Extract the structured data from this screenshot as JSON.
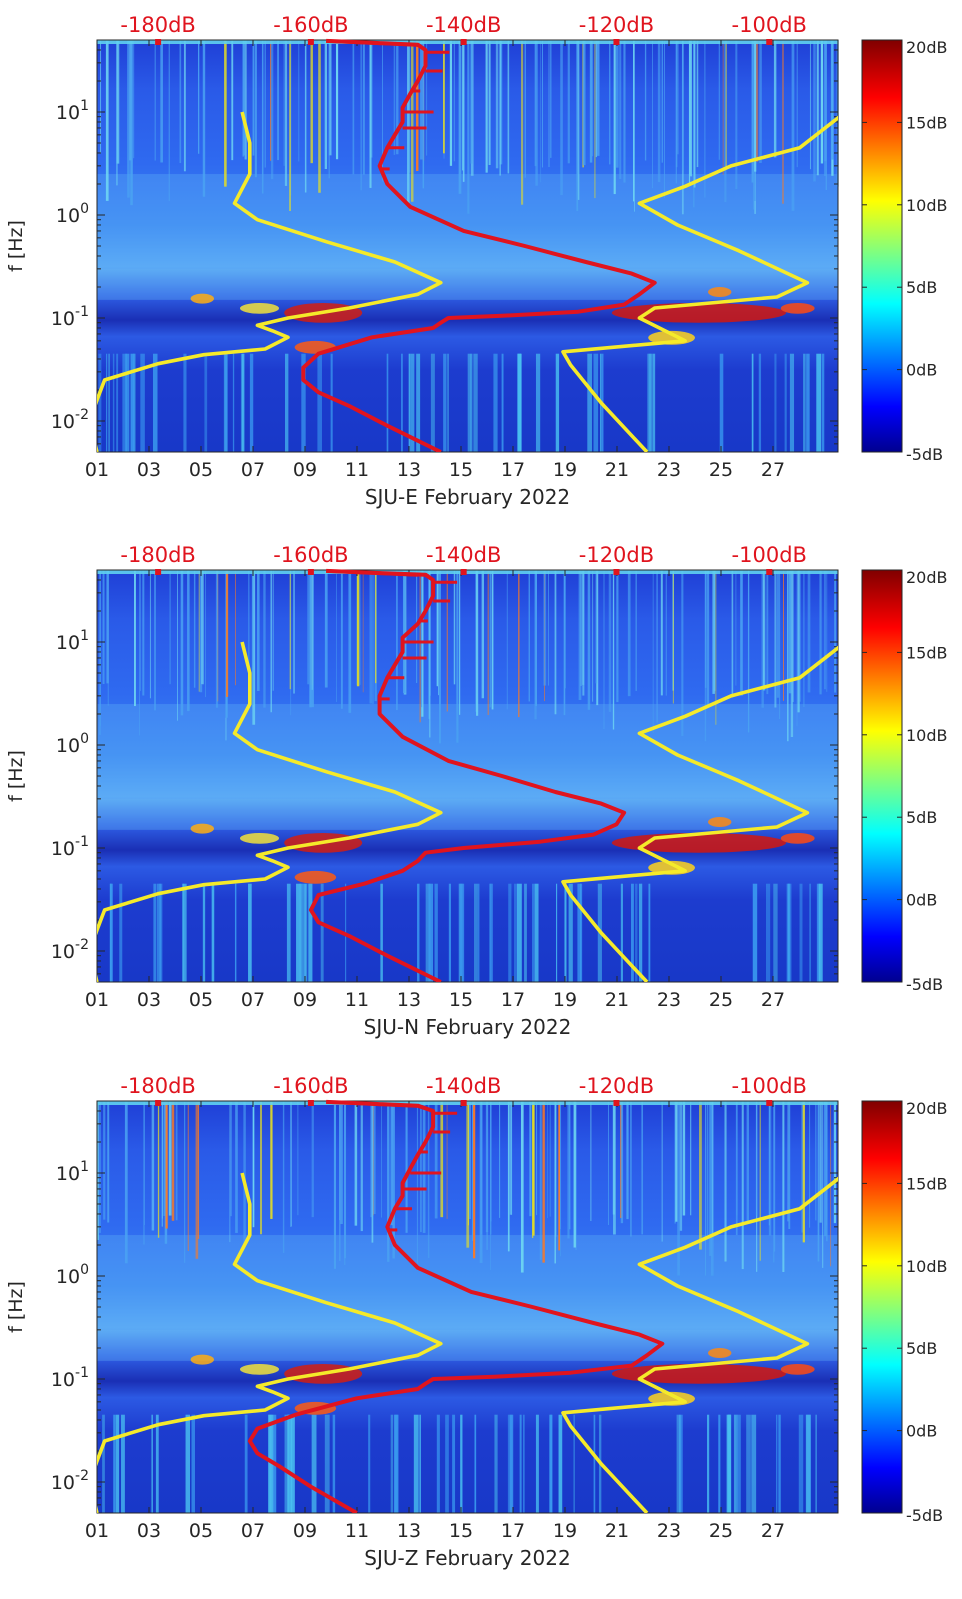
{
  "chart_data": [
    {
      "type": "heatmap",
      "xlabel": "SJU-E February 2022",
      "ylabel": "f [Hz]",
      "x_ticks": [
        "01",
        "03",
        "05",
        "07",
        "09",
        "11",
        "13",
        "15",
        "17",
        "19",
        "21",
        "23",
        "25",
        "27"
      ],
      "y_ticks": [
        "10^-2",
        "10^-1",
        "10^0",
        "10^1"
      ],
      "y_scale": "log",
      "ylim": [
        0.005,
        50
      ],
      "xlim": [
        1,
        29.5
      ],
      "top_axis_ticks": [
        "-180dB",
        "-160dB",
        "-140dB",
        "-120dB",
        "-100dB"
      ],
      "top_axis_range": [
        -188,
        -91
      ],
      "colorbar": {
        "ticks": [
          "20dB",
          "15dB",
          "10dB",
          "5dB",
          "0dB",
          "-5dB"
        ],
        "range": [
          -5,
          20
        ]
      },
      "series": [
        {
          "style": "yellow-low",
          "points": [
            [
              -188,
              0.005
            ],
            [
              -189,
              0.01
            ],
            [
              -188,
              0.016
            ],
            [
              -187,
              0.025
            ],
            [
              -180,
              0.036
            ],
            [
              -174,
              0.044
            ],
            [
              -166,
              0.05
            ],
            [
              -163,
              0.065
            ],
            [
              -165,
              0.075
            ],
            [
              -167,
              0.085
            ],
            [
              -163,
              0.1
            ],
            [
              -155,
              0.125
            ],
            [
              -146,
              0.17
            ],
            [
              -143,
              0.22
            ],
            [
              -149,
              0.35
            ],
            [
              -158,
              0.55
            ],
            [
              -167,
              0.9
            ],
            [
              -170,
              1.3
            ],
            [
              -168,
              2.5
            ],
            [
              -168,
              5
            ],
            [
              -169,
              10
            ]
          ]
        },
        {
          "style": "yellow-high",
          "points": [
            [
              -116,
              0.005
            ],
            [
              -122,
              0.015
            ],
            [
              -126,
              0.035
            ],
            [
              -127,
              0.047
            ],
            [
              -111,
              0.06
            ],
            [
              -117,
              0.1
            ],
            [
              -115,
              0.125
            ],
            [
              -99,
              0.16
            ],
            [
              -95,
              0.22
            ],
            [
              -104,
              0.45
            ],
            [
              -112,
              0.8
            ],
            [
              -117,
              1.3
            ],
            [
              -111,
              1.9
            ],
            [
              -105,
              3
            ],
            [
              -96,
              4.5
            ],
            [
              -90,
              10
            ]
          ]
        },
        {
          "style": "red-model",
          "points": [
            [
              -143,
              0.005
            ],
            [
              -150,
              0.009
            ],
            [
              -155,
              0.014
            ],
            [
              -159,
              0.019
            ],
            [
              -161,
              0.025
            ],
            [
              -161,
              0.033
            ],
            [
              -159,
              0.045
            ],
            [
              -152,
              0.065
            ],
            [
              -144,
              0.08
            ],
            [
              -143,
              0.09
            ],
            [
              -142,
              0.1
            ],
            [
              -135,
              0.105
            ],
            [
              -125,
              0.115
            ],
            [
              -119,
              0.135
            ],
            [
              -117,
              0.17
            ],
            [
              -115,
              0.22
            ],
            [
              -118,
              0.27
            ],
            [
              -124,
              0.35
            ],
            [
              -132,
              0.5
            ],
            [
              -140,
              0.7
            ],
            [
              -147,
              1.2
            ],
            [
              -150,
              2
            ],
            [
              -151,
              3
            ],
            [
              -150,
              4.5
            ],
            [
              -149,
              6
            ],
            [
              -148,
              8
            ],
            [
              -148,
              11
            ],
            [
              -147,
              15
            ],
            [
              -146,
              20
            ],
            [
              -145,
              28
            ],
            [
              -145,
              40
            ],
            [
              -146,
              45
            ],
            [
              -152,
              47
            ],
            [
              -158,
              49
            ]
          ]
        }
      ]
    },
    {
      "type": "heatmap",
      "xlabel": "SJU-N February 2022",
      "ylabel": "f [Hz]",
      "x_ticks": [
        "01",
        "03",
        "05",
        "07",
        "09",
        "11",
        "13",
        "15",
        "17",
        "19",
        "21",
        "23",
        "25",
        "27"
      ],
      "y_ticks": [
        "10^-2",
        "10^-1",
        "10^0",
        "10^1"
      ],
      "y_scale": "log",
      "ylim": [
        0.005,
        50
      ],
      "xlim": [
        1,
        29.5
      ],
      "top_axis_ticks": [
        "-180dB",
        "-160dB",
        "-140dB",
        "-120dB",
        "-100dB"
      ],
      "top_axis_range": [
        -188,
        -91
      ],
      "colorbar": {
        "ticks": [
          "20dB",
          "15dB",
          "10dB",
          "5dB",
          "0dB",
          "-5dB"
        ],
        "range": [
          -5,
          20
        ]
      },
      "series": [
        {
          "style": "yellow-low",
          "points": [
            [
              -188,
              0.005
            ],
            [
              -189,
              0.01
            ],
            [
              -188,
              0.016
            ],
            [
              -187,
              0.025
            ],
            [
              -180,
              0.036
            ],
            [
              -174,
              0.044
            ],
            [
              -166,
              0.05
            ],
            [
              -163,
              0.065
            ],
            [
              -165,
              0.075
            ],
            [
              -167,
              0.085
            ],
            [
              -163,
              0.1
            ],
            [
              -155,
              0.125
            ],
            [
              -146,
              0.17
            ],
            [
              -143,
              0.22
            ],
            [
              -149,
              0.35
            ],
            [
              -158,
              0.55
            ],
            [
              -167,
              0.9
            ],
            [
              -170,
              1.3
            ],
            [
              -168,
              2.5
            ],
            [
              -168,
              5
            ],
            [
              -169,
              10
            ]
          ]
        },
        {
          "style": "yellow-high",
          "points": [
            [
              -116,
              0.005
            ],
            [
              -122,
              0.015
            ],
            [
              -126,
              0.035
            ],
            [
              -127,
              0.047
            ],
            [
              -111,
              0.06
            ],
            [
              -117,
              0.1
            ],
            [
              -115,
              0.125
            ],
            [
              -99,
              0.16
            ],
            [
              -95,
              0.22
            ],
            [
              -104,
              0.45
            ],
            [
              -112,
              0.8
            ],
            [
              -117,
              1.3
            ],
            [
              -111,
              1.9
            ],
            [
              -105,
              3
            ],
            [
              -96,
              4.5
            ],
            [
              -90,
              10
            ]
          ]
        },
        {
          "style": "red-model",
          "points": [
            [
              -143,
              0.005
            ],
            [
              -150,
              0.009
            ],
            [
              -155,
              0.014
            ],
            [
              -159,
              0.019
            ],
            [
              -160,
              0.025
            ],
            [
              -159,
              0.035
            ],
            [
              -153,
              0.045
            ],
            [
              -148,
              0.06
            ],
            [
              -146,
              0.075
            ],
            [
              -145,
              0.09
            ],
            [
              -140,
              0.1
            ],
            [
              -130,
              0.115
            ],
            [
              -123,
              0.135
            ],
            [
              -120,
              0.17
            ],
            [
              -119,
              0.22
            ],
            [
              -122,
              0.27
            ],
            [
              -128,
              0.35
            ],
            [
              -135,
              0.5
            ],
            [
              -142,
              0.7
            ],
            [
              -148,
              1.2
            ],
            [
              -151,
              2
            ],
            [
              -151,
              3
            ],
            [
              -150,
              4.5
            ],
            [
              -149,
              6
            ],
            [
              -148,
              8
            ],
            [
              -148,
              11
            ],
            [
              -146,
              15
            ],
            [
              -145,
              20
            ],
            [
              -144,
              28
            ],
            [
              -144,
              40
            ],
            [
              -145,
              45
            ],
            [
              -152,
              47
            ],
            [
              -158,
              49
            ]
          ]
        }
      ]
    },
    {
      "type": "heatmap",
      "xlabel": "SJU-Z February 2022",
      "ylabel": "f [Hz]",
      "x_ticks": [
        "01",
        "03",
        "05",
        "07",
        "09",
        "11",
        "13",
        "15",
        "17",
        "19",
        "21",
        "23",
        "25",
        "27"
      ],
      "y_ticks": [
        "10^-2",
        "10^-1",
        "10^0",
        "10^1"
      ],
      "y_scale": "log",
      "ylim": [
        0.005,
        50
      ],
      "xlim": [
        1,
        29.5
      ],
      "top_axis_ticks": [
        "-180dB",
        "-160dB",
        "-140dB",
        "-120dB",
        "-100dB"
      ],
      "top_axis_range": [
        -188,
        -91
      ],
      "colorbar": {
        "ticks": [
          "20dB",
          "15dB",
          "10dB",
          "5dB",
          "0dB",
          "-5dB"
        ],
        "range": [
          -5,
          20
        ]
      },
      "series": [
        {
          "style": "yellow-low",
          "points": [
            [
              -188,
              0.005
            ],
            [
              -189,
              0.01
            ],
            [
              -188,
              0.016
            ],
            [
              -187,
              0.025
            ],
            [
              -180,
              0.036
            ],
            [
              -174,
              0.044
            ],
            [
              -166,
              0.05
            ],
            [
              -163,
              0.065
            ],
            [
              -165,
              0.075
            ],
            [
              -167,
              0.085
            ],
            [
              -163,
              0.1
            ],
            [
              -155,
              0.125
            ],
            [
              -146,
              0.17
            ],
            [
              -143,
              0.22
            ],
            [
              -149,
              0.35
            ],
            [
              -158,
              0.55
            ],
            [
              -167,
              0.9
            ],
            [
              -170,
              1.3
            ],
            [
              -168,
              2.5
            ],
            [
              -168,
              5
            ],
            [
              -169,
              10
            ]
          ]
        },
        {
          "style": "yellow-high",
          "points": [
            [
              -116,
              0.005
            ],
            [
              -122,
              0.015
            ],
            [
              -126,
              0.035
            ],
            [
              -127,
              0.047
            ],
            [
              -111,
              0.06
            ],
            [
              -117,
              0.1
            ],
            [
              -115,
              0.125
            ],
            [
              -99,
              0.16
            ],
            [
              -95,
              0.22
            ],
            [
              -104,
              0.45
            ],
            [
              -112,
              0.8
            ],
            [
              -117,
              1.3
            ],
            [
              -111,
              1.9
            ],
            [
              -105,
              3
            ],
            [
              -96,
              4.5
            ],
            [
              -90,
              10
            ]
          ]
        },
        {
          "style": "red-model",
          "points": [
            [
              -154,
              0.005
            ],
            [
              -160,
              0.009
            ],
            [
              -164,
              0.014
            ],
            [
              -167,
              0.019
            ],
            [
              -168,
              0.025
            ],
            [
              -167,
              0.033
            ],
            [
              -162,
              0.045
            ],
            [
              -154,
              0.065
            ],
            [
              -146,
              0.08
            ],
            [
              -145,
              0.09
            ],
            [
              -144,
              0.1
            ],
            [
              -136,
              0.105
            ],
            [
              -126,
              0.115
            ],
            [
              -118,
              0.135
            ],
            [
              -116,
              0.17
            ],
            [
              -114,
              0.22
            ],
            [
              -117,
              0.27
            ],
            [
              -123,
              0.35
            ],
            [
              -131,
              0.5
            ],
            [
              -139,
              0.7
            ],
            [
              -146,
              1.2
            ],
            [
              -149,
              2
            ],
            [
              -150,
              3
            ],
            [
              -149,
              4.5
            ],
            [
              -148,
              6
            ],
            [
              -148,
              8
            ],
            [
              -147,
              11
            ],
            [
              -146,
              15
            ],
            [
              -145,
              20
            ],
            [
              -144,
              28
            ],
            [
              -144,
              40
            ],
            [
              -146,
              45
            ],
            [
              -152,
              47
            ],
            [
              -158,
              49
            ]
          ]
        }
      ]
    }
  ]
}
